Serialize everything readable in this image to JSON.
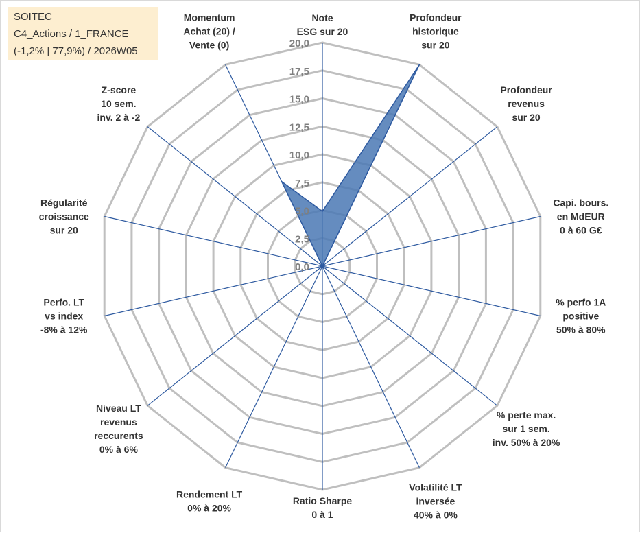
{
  "info": {
    "line1": "SOITEC",
    "line2": "C4_Actions / 1_FRANCE",
    "line3": "(-1,2% | 77,9%) / 2026W05"
  },
  "colors": {
    "grid": "#bfbfbf",
    "spoke": "#2e5aa0",
    "fill": "#4a78b4",
    "tick": "#7f7f7f",
    "label": "#333333",
    "infobox": "#fdeed0"
  },
  "chart_data": {
    "type": "radar",
    "range": [
      0,
      20
    ],
    "tick_values": [
      0,
      2.5,
      5,
      7.5,
      10,
      12.5,
      15,
      17.5,
      20
    ],
    "tick_labels": [
      "0,0",
      "2,5",
      "5,0",
      "7,5",
      "10,0",
      "12,5",
      "15,0",
      "17,5",
      "20,0"
    ],
    "grid": true,
    "axes": [
      {
        "label": [
          "Note",
          "ESG sur 20"
        ]
      },
      {
        "label": [
          "Profondeur",
          "historique",
          "sur 20"
        ]
      },
      {
        "label": [
          "Profondeur",
          "revenus",
          "sur 20"
        ]
      },
      {
        "label": [
          "Capi. bours.",
          "en MdEUR",
          "0 à 60 G€"
        ]
      },
      {
        "label": [
          "% perfo 1A",
          "positive",
          "50% à 80%"
        ]
      },
      {
        "label": [
          "% perte max.",
          "sur 1 sem.",
          "inv. 50% à 20%"
        ]
      },
      {
        "label": [
          "Volatilité LT",
          "inversée",
          "40% à 0%"
        ]
      },
      {
        "label": [
          "Ratio Sharpe",
          "0 à 1"
        ]
      },
      {
        "label": [
          "Rendement LT",
          "0% à 20%"
        ]
      },
      {
        "label": [
          "Niveau LT",
          "revenus",
          "reccurents",
          "0% à 6%"
        ]
      },
      {
        "label": [
          "Perfo. LT",
          "vs index",
          "-8% à 12%"
        ]
      },
      {
        "label": [
          "Régularité",
          "croissance",
          "sur 20"
        ]
      },
      {
        "label": [
          "Z-score",
          "10 sem.",
          "inv. 2 à -2"
        ]
      },
      {
        "label": [
          "Momentum",
          "Achat (20) /",
          "Vente (0)"
        ]
      }
    ],
    "series": [
      {
        "name": "SOITEC",
        "values": [
          4.9,
          20,
          0,
          0,
          0,
          0,
          0,
          0,
          0,
          0,
          0,
          0,
          0,
          8.4
        ]
      }
    ]
  }
}
